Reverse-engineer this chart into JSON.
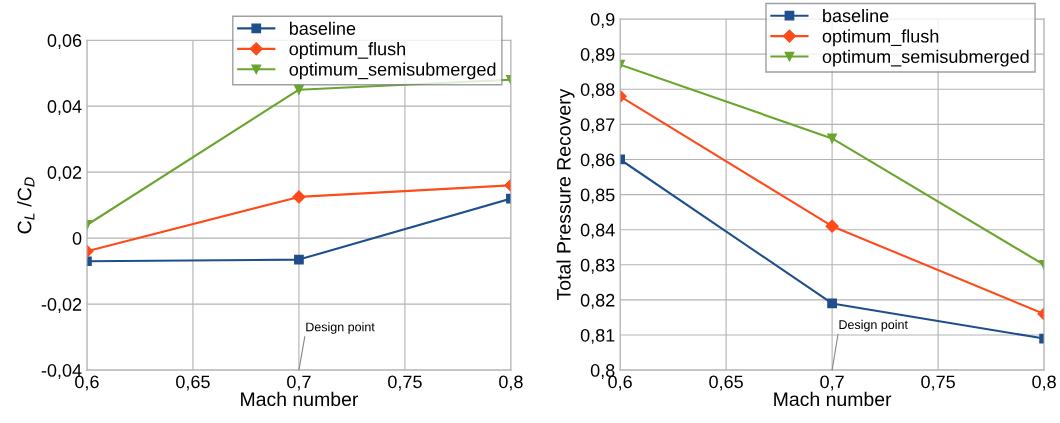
{
  "chart_data": [
    {
      "type": "line",
      "xlabel": "Mach number",
      "ylabel": "C$_{L}$ /C$_{D}$",
      "x": [
        0.6,
        0.7,
        0.8
      ],
      "series": [
        {
          "name": "baseline",
          "color": "#1f4e8c",
          "marker": "square",
          "values": [
            -0.007,
            -0.0065,
            0.012
          ]
        },
        {
          "name": "optimum_flush",
          "color": "#ff4a1a",
          "marker": "diamond",
          "values": [
            -0.004,
            0.0125,
            0.016
          ]
        },
        {
          "name": "optimum_semisubmerged",
          "color": "#6aa52e",
          "marker": "triangle",
          "values": [
            0.004,
            0.045,
            0.048
          ]
        }
      ],
      "xlim": [
        0.6,
        0.8
      ],
      "xticks": [
        {
          "value": 0.6,
          "label": "0,6"
        },
        {
          "value": 0.65,
          "label": "0,65"
        },
        {
          "value": 0.7,
          "label": "0,7"
        },
        {
          "value": 0.75,
          "label": "0,75"
        },
        {
          "value": 0.8,
          "label": "0,8"
        }
      ],
      "ylim": [
        -0.04,
        0.06
      ],
      "yticks": [
        {
          "value": -0.04,
          "label": "-0,04"
        },
        {
          "value": -0.02,
          "label": "-0,02"
        },
        0,
        {
          "value": 0.02,
          "label": "0,02"
        },
        {
          "value": 0.04,
          "label": "0,04"
        },
        {
          "value": 0.06,
          "label": "0,06"
        }
      ],
      "annotations": [
        "Design point"
      ],
      "grid": true,
      "legend": "top right"
    },
    {
      "type": "line",
      "xlabel": "Mach number",
      "ylabel": "Total Pressure Recovery",
      "x": [
        0.6,
        0.7,
        0.8
      ],
      "series": [
        {
          "name": "baseline",
          "color": "#1f4e8c",
          "marker": "square",
          "values": [
            0.86,
            0.819,
            0.809
          ]
        },
        {
          "name": "optimum_flush",
          "color": "#ff4a1a",
          "marker": "diamond",
          "values": [
            0.878,
            0.841,
            0.816
          ]
        },
        {
          "name": "optimum_semisubmerged",
          "color": "#6aa52e",
          "marker": "triangle",
          "values": [
            0.887,
            0.866,
            0.83
          ]
        }
      ],
      "xlim": [
        0.6,
        0.8
      ],
      "xticks": [
        {
          "value": 0.6,
          "label": "0,6"
        },
        {
          "value": 0.65,
          "label": "0,65"
        },
        {
          "value": 0.7,
          "label": "0,7"
        },
        {
          "value": 0.75,
          "label": "0,75"
        },
        {
          "value": 0.8,
          "label": "0,8"
        }
      ],
      "ylim": [
        0.8,
        0.9
      ],
      "yticks": [
        {
          "value": 0.8,
          "label": "0,8"
        },
        {
          "value": 0.81,
          "label": "0,81"
        },
        {
          "value": 0.82,
          "label": "0,82"
        },
        {
          "value": 0.83,
          "label": "0,83"
        },
        {
          "value": 0.84,
          "label": "0,84"
        },
        {
          "value": 0.85,
          "label": "0,85"
        },
        {
          "value": 0.86,
          "label": "0,86"
        },
        {
          "value": 0.87,
          "label": "0,87"
        },
        {
          "value": 0.88,
          "label": "0,88"
        },
        {
          "value": 0.89,
          "label": "0,89"
        },
        {
          "value": 0.9,
          "label": "0,9"
        }
      ],
      "annotations": [
        "Design point"
      ],
      "grid": true,
      "legend": "top right"
    }
  ]
}
